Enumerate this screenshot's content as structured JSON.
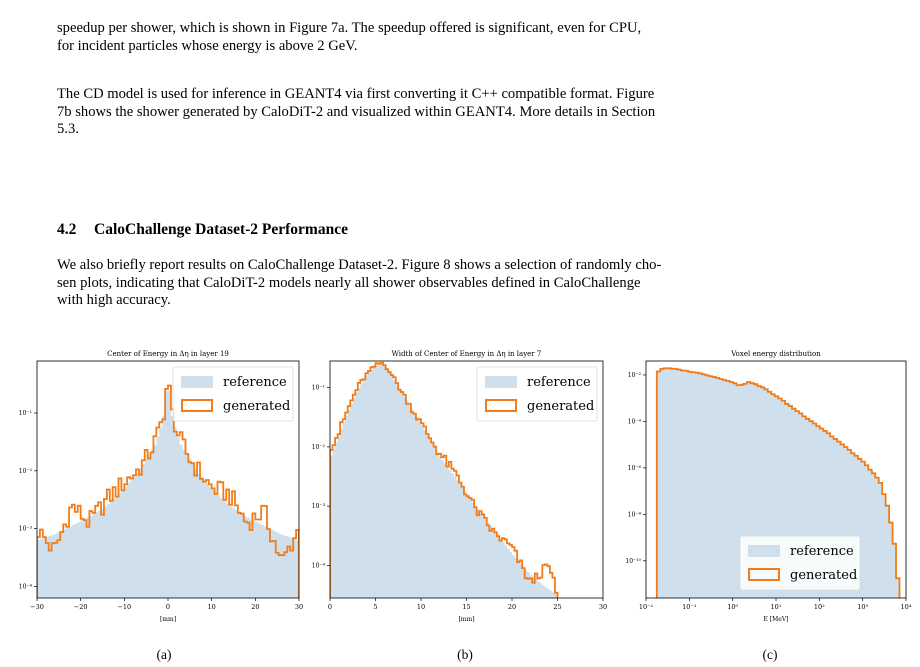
{
  "paragraphs": {
    "p1": {
      "line1": "speedup per shower, which is shown in Figure 7a. The speedup offered is significant, even for CPU,",
      "line2": "for incident particles whose energy is above 2 GeV."
    },
    "p2": {
      "line1_a": "The CD model is used for inference in G",
      "line1_b": "EANT",
      "line1_c": "4 via first converting it C++ compatible format. Figure",
      "line2_a": "7b shows the shower generated by CaloDiT-2 and visualized within G",
      "line2_b": "EANT",
      "line2_c": "4. More details in Section",
      "line3": "5.3."
    },
    "p3": {
      "line1": "We also briefly report results on CaloChallenge Dataset-2. Figure 8 shows a selection of randomly cho-",
      "line2": "sen plots, indicating that CaloDiT-2 models nearly all shower observables defined in CaloChallenge",
      "line3": "with high accuracy."
    }
  },
  "section": {
    "number": "4.2",
    "title": "CaloChallenge Dataset-2 Performance"
  },
  "colors": {
    "reference": "#cfe0ec",
    "generated": "#f07d1a"
  },
  "chart_data": [
    {
      "type": "area",
      "title": "Center of Energy in Δη in layer 19",
      "xlabel": "[mm]",
      "xlim": [
        -30,
        30
      ],
      "ylim_log": [
        -4.2,
        -0.1
      ],
      "yscale": "log",
      "xticks": [
        "−30",
        "−20",
        "−10",
        "0",
        "10",
        "20",
        "30"
      ],
      "yticks": [
        "10⁻¹",
        "10⁻²",
        "10⁻³",
        "10⁻⁴"
      ],
      "legend": {
        "position": "top-right",
        "entries": [
          "reference",
          "generated"
        ]
      },
      "series": [
        {
          "name": "reference",
          "x": [
            -30,
            -26,
            -22,
            -18,
            -14,
            -10,
            -7,
            -5,
            -3,
            -2,
            -1,
            -0.5,
            0,
            0.5,
            1,
            2,
            3,
            5,
            7,
            10,
            14,
            18,
            22,
            26,
            30
          ],
          "log10y": [
            -3.2,
            -3.1,
            -2.95,
            -2.8,
            -2.6,
            -2.3,
            -2.05,
            -1.8,
            -1.55,
            -1.35,
            -1.05,
            -0.75,
            -0.35,
            -0.75,
            -1.05,
            -1.35,
            -1.55,
            -1.8,
            -2.05,
            -2.3,
            -2.6,
            -2.8,
            -2.95,
            -3.1,
            -3.2
          ]
        },
        {
          "name": "generated",
          "x": [
            -30,
            -26,
            -22,
            -18,
            -14,
            -10,
            -7,
            -5,
            -3,
            -2,
            -1,
            -0.5,
            0,
            0.5,
            1,
            2,
            3,
            5,
            7,
            10,
            14,
            18,
            22,
            26,
            30
          ],
          "log10y": [
            -3.0,
            -3.4,
            -2.6,
            -2.9,
            -2.5,
            -2.2,
            -2.0,
            -1.8,
            -1.5,
            -1.3,
            -1.0,
            -0.7,
            -0.35,
            -0.7,
            -1.0,
            -1.3,
            -1.5,
            -1.8,
            -2.0,
            -2.3,
            -2.4,
            -2.9,
            -2.7,
            -3.6,
            -3.0
          ]
        }
      ]
    },
    {
      "type": "area",
      "title": "Width of Center of Energy in Δη in layer 7",
      "xlabel": "[mm]",
      "xlim": [
        0,
        30
      ],
      "ylim_log": [
        -4.55,
        -0.55
      ],
      "yscale": "log",
      "xticks": [
        "0",
        "5",
        "10",
        "15",
        "20",
        "25",
        "30"
      ],
      "yticks": [
        "10⁻¹",
        "10⁻²",
        "10⁻³",
        "10⁻⁴"
      ],
      "legend": {
        "position": "top-right",
        "entries": [
          "reference",
          "generated"
        ]
      },
      "series": [
        {
          "name": "reference",
          "x": [
            0,
            1,
            2,
            3,
            4,
            5,
            5.7,
            6.5,
            8,
            10,
            12,
            14,
            16,
            18,
            20,
            22,
            24,
            25
          ],
          "log10y": [
            -2.2,
            -1.8,
            -1.4,
            -1.05,
            -0.8,
            -0.63,
            -0.6,
            -0.72,
            -1.1,
            -1.6,
            -2.15,
            -2.55,
            -3.0,
            -3.4,
            -3.8,
            -4.15,
            -4.4,
            -4.5
          ]
        },
        {
          "name": "generated",
          "x": [
            0,
            1,
            2,
            3,
            4,
            5,
            5.7,
            6.5,
            8,
            10,
            12,
            14,
            16,
            18,
            20,
            22,
            24,
            25
          ],
          "log10y": [
            -2.0,
            -1.75,
            -1.35,
            -1.0,
            -0.78,
            -0.62,
            -0.58,
            -0.7,
            -1.1,
            -1.6,
            -2.1,
            -2.5,
            -3.05,
            -3.45,
            -3.7,
            -4.3,
            -4.0,
            -4.5
          ]
        }
      ]
    },
    {
      "type": "area",
      "title": "Voxel energy distribution",
      "xlabel": "E [MeV]",
      "xlim_log": [
        -2,
        4
      ],
      "xscale": "log",
      "ylim_log": [
        -11.6,
        -1.4
      ],
      "yscale": "log",
      "xticks": [
        "10⁻²",
        "10⁻¹",
        "10⁰",
        "10¹",
        "10²",
        "10³",
        "10⁴"
      ],
      "yticks": [
        "10⁻²",
        "10⁻⁴",
        "10⁻⁶",
        "10⁻⁸",
        "10⁻¹⁰"
      ],
      "legend": {
        "position": "bottom-center",
        "entries": [
          "reference",
          "generated"
        ]
      },
      "series": [
        {
          "name": "reference",
          "log10x": [
            -1.75,
            -1.6,
            -1.3,
            -1.0,
            -0.7,
            -0.4,
            -0.1,
            0.15,
            0.4,
            0.7,
            1.0,
            1.3,
            1.6,
            1.9,
            2.2,
            2.5,
            2.8,
            3.1,
            3.4,
            3.6,
            3.75,
            3.85
          ],
          "log10y": [
            -1.95,
            -1.7,
            -1.75,
            -1.85,
            -1.95,
            -2.1,
            -2.25,
            -2.45,
            -2.3,
            -2.55,
            -2.9,
            -3.3,
            -3.7,
            -4.1,
            -4.5,
            -4.95,
            -5.4,
            -5.9,
            -6.6,
            -7.8,
            -9.5,
            -11.6
          ]
        },
        {
          "name": "generated",
          "log10x": [
            -1.75,
            -1.6,
            -1.3,
            -1.0,
            -0.7,
            -0.4,
            -0.1,
            0.15,
            0.4,
            0.7,
            1.0,
            1.3,
            1.6,
            1.9,
            2.2,
            2.5,
            2.8,
            3.1,
            3.4,
            3.6,
            3.75,
            3.85
          ],
          "log10y": [
            -1.9,
            -1.7,
            -1.75,
            -1.85,
            -1.95,
            -2.1,
            -2.25,
            -2.45,
            -2.3,
            -2.55,
            -2.9,
            -3.3,
            -3.7,
            -4.1,
            -4.5,
            -4.95,
            -5.4,
            -5.9,
            -6.6,
            -7.8,
            -9.5,
            -11.6
          ]
        }
      ]
    }
  ],
  "captions": [
    "(a)",
    "(b)",
    "(c)"
  ]
}
